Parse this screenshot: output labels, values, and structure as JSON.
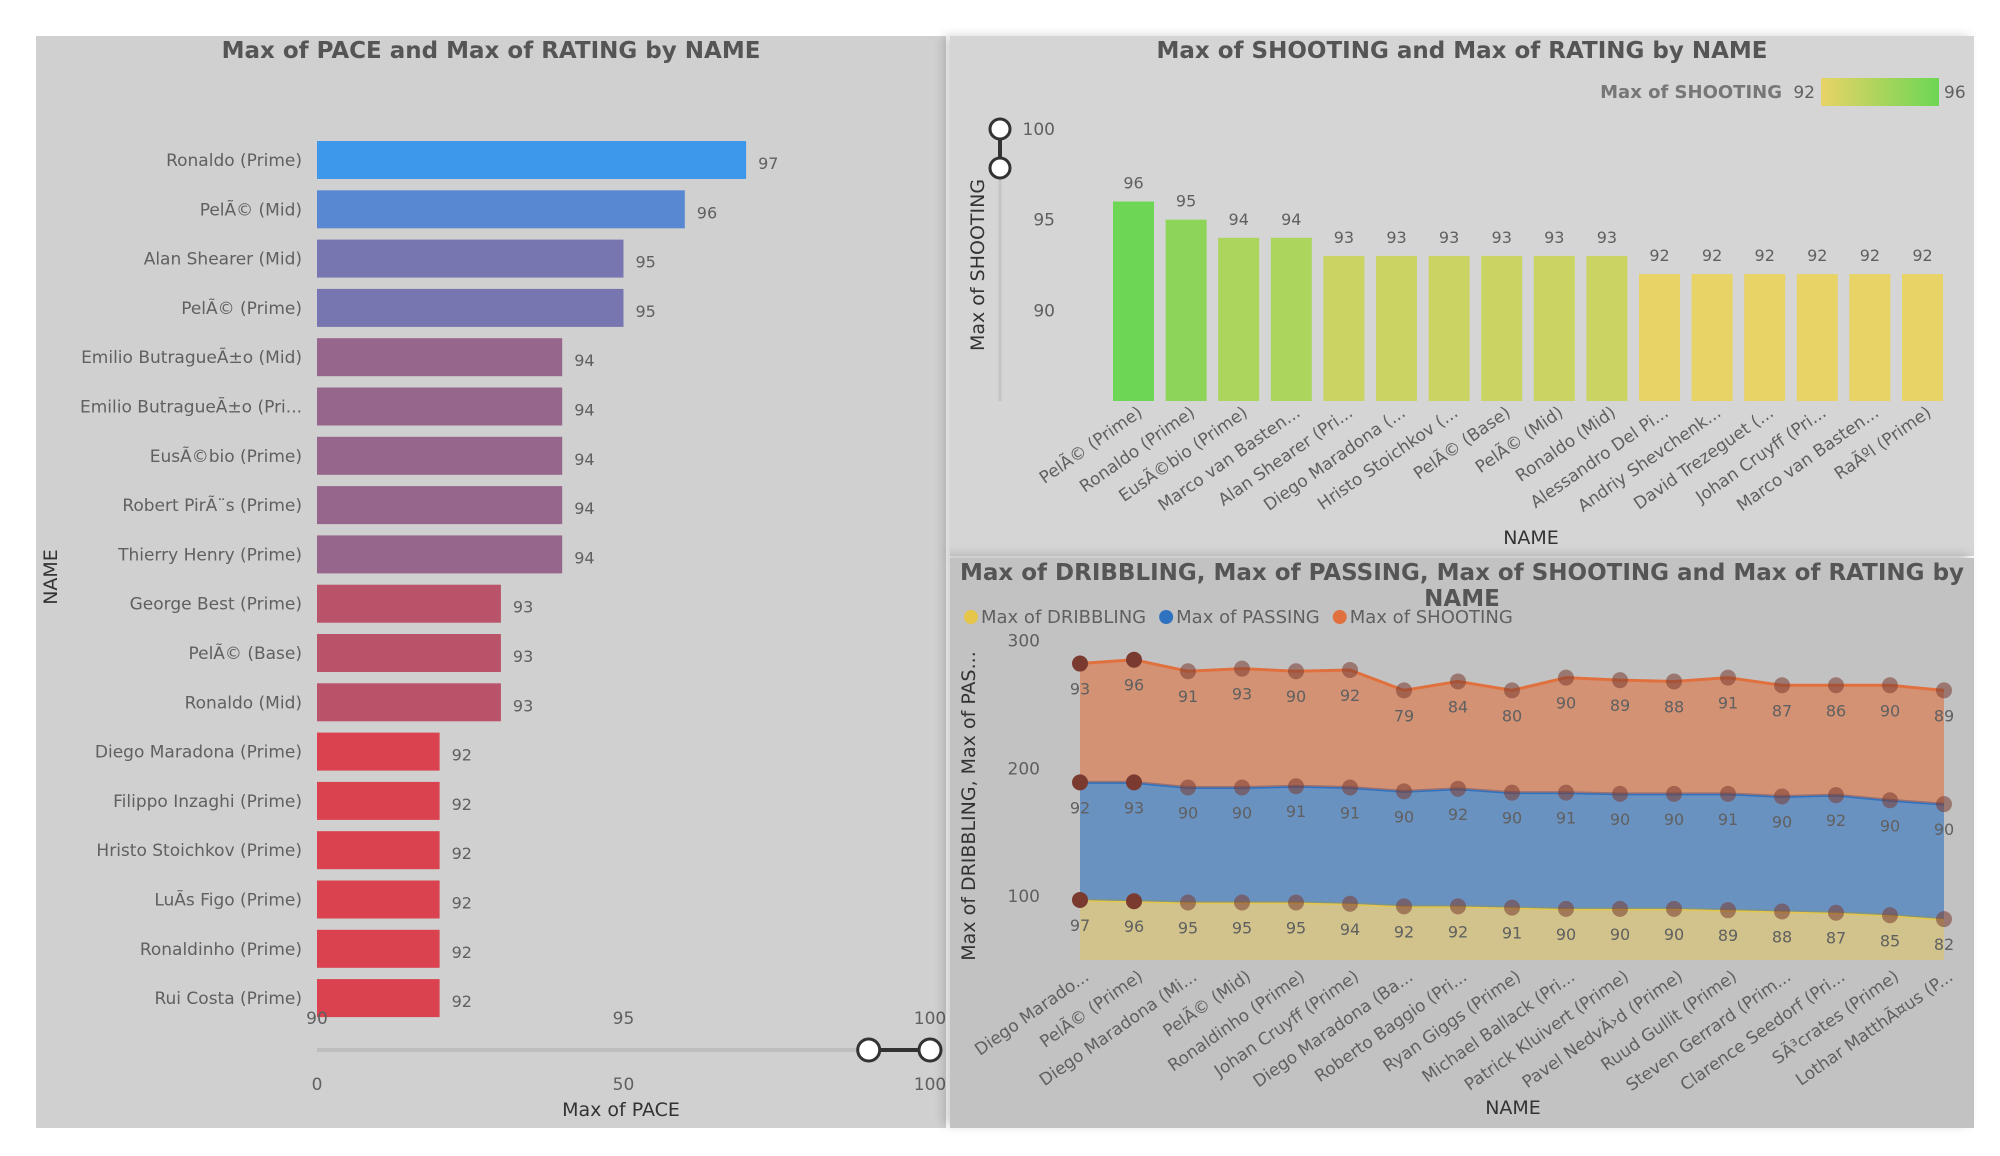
{
  "charts": [
    {
      "type": "bar",
      "orientation": "horizontal",
      "title": "Max of PACE and Max of RATING by NAME",
      "xlabel": "Max of PACE",
      "ylabel": "NAME",
      "categories": [
        "Ronaldo (Prime)",
        "PelÃ© (Mid)",
        "Alan Shearer (Mid)",
        "PelÃ© (Prime)",
        "Emilio ButragueÃ±o (Mid)",
        "Emilio ButragueÃ±o (Pri...",
        "EusÃ©bio (Prime)",
        "Robert PirÃ¨s (Prime)",
        "Thierry Henry (Prime)",
        "George Best (Prime)",
        "PelÃ© (Base)",
        "Ronaldo (Mid)",
        "Diego Maradona (Prime)",
        "Filippo Inzaghi (Prime)",
        "Hristo Stoichkov (Prime)",
        "LuÃs Figo (Prime)",
        "Ronaldinho (Prime)",
        "Rui Costa (Prime)"
      ],
      "values": [
        97,
        96,
        95,
        95,
        94,
        94,
        94,
        94,
        94,
        93,
        93,
        93,
        92,
        92,
        92,
        92,
        92,
        92
      ],
      "colors": [
        "#3d97ea",
        "#5888d2",
        "#7876b0",
        "#7876b0",
        "#96668c",
        "#96668c",
        "#96668c",
        "#96668c",
        "#96668c",
        "#b95369",
        "#b95369",
        "#b95369",
        "#d9424e",
        "#d9424e",
        "#d9424e",
        "#d9424e",
        "#d9424e",
        "#d9424e"
      ],
      "xlim": [
        90,
        100
      ],
      "xticks": [
        "90",
        "95",
        "100"
      ],
      "slider_ticks": [
        "0",
        "50",
        "100"
      ],
      "slider_range": [
        90,
        100
      ]
    },
    {
      "type": "bar",
      "title": "Max of SHOOTING and Max of RATING by NAME",
      "xlabel": "NAME",
      "ylabel": "Max of SHOOTING",
      "categories": [
        "PelÃ© (Prime)",
        "Ronaldo (Prime)",
        "EusÃ©bio (Prime)",
        "Marco van Basten...",
        "Alan Shearer (Pri...",
        "Diego Maradona (...",
        "Hristo Stoichkov (...",
        "PelÃ© (Base)",
        "PelÃ© (Mid)",
        "Ronaldo (Mid)",
        "Alessandro Del Pi...",
        "Andriy Shevchenk...",
        "David Trezeguet (...",
        "Johan Cruyff (Pri...",
        "Marco van Basten...",
        "RaÃºl (Prime)"
      ],
      "values": [
        96,
        95,
        94,
        94,
        93,
        93,
        93,
        93,
        93,
        93,
        92,
        92,
        92,
        92,
        92,
        92
      ],
      "ylim": [
        85,
        100
      ],
      "yticks": [
        "90",
        "95",
        "100"
      ],
      "legend": {
        "title": "Max of SHOOTING",
        "min_label": "92",
        "max_label": "96",
        "min_color": "#e8d366",
        "max_color": "#6dd654"
      },
      "legend_position": "top-right"
    },
    {
      "type": "area",
      "stacked": true,
      "title": "Max of DRIBBLING, Max of PASSING, Max of SHOOTING and Max of RATING by NAME",
      "xlabel": "NAME",
      "ylabel": "Max of DRIBBLING, Max of PAS...",
      "categories": [
        "Diego Marado...",
        "PelÃ© (Prime)",
        "Diego Maradona (Mi...",
        "PelÃ© (Mid)",
        "Ronaldinho (Prime)",
        "Johan Cruyff (Prime)",
        "Diego Maradona (Ba...",
        "Roberto Baggio (Pri...",
        "Ryan Giggs (Prime)",
        "Michael Ballack (Pri...",
        "Patrick Kluivert (Prime)",
        "Pavel NedvÄ›d (Prime)",
        "Ruud Gullit (Prime)",
        "Steven Gerrard (Prim...",
        "Clarence Seedorf (Pri...",
        "SÃ³crates (Prime)",
        "Lothar MatthÃ¤us (P..."
      ],
      "series": [
        {
          "name": "Max of DRIBBLING",
          "color": "#e5c54a",
          "values": [
            97,
            96,
            95,
            95,
            95,
            94,
            92,
            92,
            91,
            90,
            90,
            90,
            89,
            88,
            87,
            85,
            82
          ]
        },
        {
          "name": "Max of PASSING",
          "color": "#2f72c0",
          "values": [
            92,
            93,
            90,
            90,
            91,
            91,
            90,
            92,
            90,
            91,
            90,
            90,
            91,
            90,
            92,
            90,
            90
          ]
        },
        {
          "name": "Max of SHOOTING",
          "color": "#e0713f",
          "values": [
            93,
            96,
            91,
            93,
            90,
            92,
            79,
            84,
            80,
            90,
            89,
            88,
            91,
            87,
            86,
            90,
            89
          ]
        }
      ],
      "ylim": [
        50,
        320
      ],
      "yticks": [
        "100",
        "200",
        "300"
      ],
      "legend_position": "top-left"
    }
  ]
}
